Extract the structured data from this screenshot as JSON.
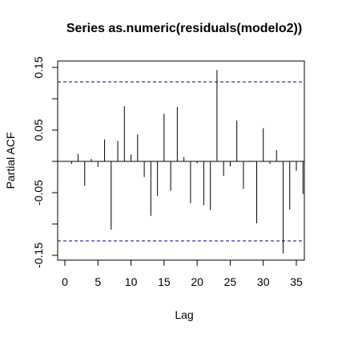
{
  "chart_data": {
    "type": "bar",
    "title": "Series  as.numeric(residuals(modelo2))",
    "xlabel": "Lag",
    "ylabel": "Partial ACF",
    "xlim": [
      0,
      37
    ],
    "ylim": [
      -0.15,
      0.15
    ],
    "x_ticks": [
      0,
      5,
      10,
      15,
      20,
      25,
      30,
      35
    ],
    "y_ticks": [
      -0.15,
      -0.05,
      0.05,
      0.15
    ],
    "y_tick_labels": [
      "-0.15",
      "-0.05",
      "0.05",
      "0.15"
    ],
    "confidence_bounds": [
      0.127,
      -0.127
    ],
    "confidence_color": "#00008b",
    "lags": [
      1,
      2,
      3,
      4,
      5,
      6,
      7,
      8,
      9,
      10,
      11,
      12,
      13,
      14,
      15,
      16,
      17,
      18,
      19,
      20,
      21,
      22,
      23,
      24,
      25,
      26,
      27,
      28,
      29,
      30,
      31,
      32,
      33,
      34,
      35,
      36
    ],
    "values": [
      -0.004,
      0.012,
      -0.039,
      0.004,
      -0.009,
      0.035,
      -0.109,
      0.033,
      0.088,
      0.011,
      0.043,
      -0.025,
      -0.087,
      -0.055,
      0.076,
      -0.047,
      0.087,
      0.007,
      -0.067,
      -0.003,
      -0.07,
      -0.078,
      0.146,
      -0.023,
      -0.008,
      0.065,
      -0.044,
      -0.001,
      -0.099,
      0.053,
      -0.004,
      0.018,
      -0.147,
      -0.077,
      -0.015,
      -0.052
    ]
  }
}
